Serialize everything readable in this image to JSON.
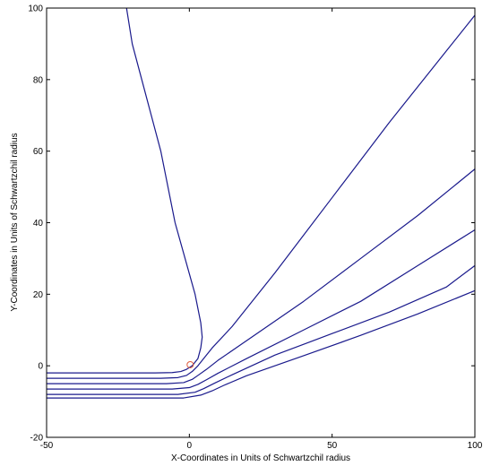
{
  "chart_data": {
    "type": "line",
    "title": "",
    "xlabel": "X-Coordinates in Units of Schwartzchil radius",
    "ylabel": "Y-Coordinates in Units of Schwartzchil radius",
    "xlim": [
      -50,
      100
    ],
    "ylim": [
      -20,
      100
    ],
    "xticks": [
      -50,
      0,
      50,
      100
    ],
    "yticks": [
      -20,
      0,
      20,
      40,
      60,
      80,
      100
    ],
    "grid": false,
    "legend": "none",
    "colors": {
      "trajectories": "#1a1a8c",
      "black_hole": "#e05a3a",
      "axes": "#000000"
    },
    "series": [
      {
        "x": [
          -50,
          -12,
          -6,
          -3,
          -1,
          1,
          3,
          4,
          4.5,
          4,
          2,
          -5,
          -10,
          -15,
          -20,
          -22
        ],
        "y": [
          -2,
          -2,
          -1.9,
          -1.6,
          -1,
          0,
          2,
          5,
          8,
          12,
          20,
          40,
          60,
          75,
          90,
          100
        ]
      },
      {
        "x": [
          -50,
          -10,
          -4,
          -1,
          1,
          3,
          5,
          8,
          15,
          30,
          50,
          70,
          90,
          100
        ],
        "y": [
          -3.5,
          -3.5,
          -3.3,
          -2.7,
          -1.6,
          0,
          2,
          5,
          11,
          26,
          47,
          68,
          88,
          98
        ]
      },
      {
        "x": [
          -50,
          -8,
          -2,
          1,
          3,
          6,
          10,
          20,
          40,
          60,
          80,
          100
        ],
        "y": [
          -5,
          -5,
          -4.7,
          -3.8,
          -2.7,
          -1,
          1.5,
          7,
          18,
          30,
          42,
          55
        ]
      },
      {
        "x": [
          -50,
          -6,
          0,
          3,
          6,
          10,
          20,
          40,
          60,
          80,
          100
        ],
        "y": [
          -6.5,
          -6.5,
          -6.1,
          -5.2,
          -3.9,
          -2.1,
          2,
          10,
          18,
          28,
          38
        ]
      },
      {
        "x": [
          -50,
          -4,
          2,
          5,
          9,
          15,
          30,
          50,
          70,
          90,
          100
        ],
        "y": [
          -8,
          -8,
          -7.4,
          -6.4,
          -4.8,
          -2.5,
          3,
          9,
          15,
          22,
          28
        ]
      },
      {
        "x": [
          -50,
          -2,
          4,
          8,
          12,
          20,
          40,
          60,
          80,
          100
        ],
        "y": [
          -9,
          -9,
          -8.2,
          -7.0,
          -5.5,
          -2.8,
          2.8,
          8.5,
          14.5,
          21
        ]
      }
    ],
    "annotations": [
      {
        "type": "circle",
        "x": 0.3,
        "y": 0.3,
        "r": 1.1
      }
    ]
  }
}
